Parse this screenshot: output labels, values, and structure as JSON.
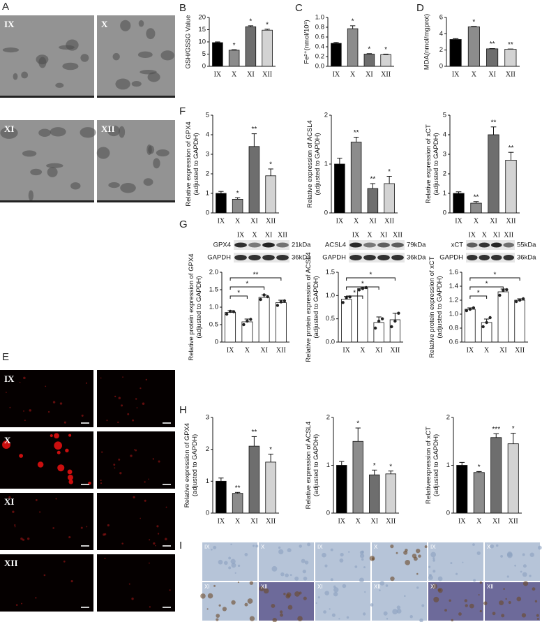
{
  "panel_labels": [
    "A",
    "B",
    "C",
    "D",
    "E",
    "F",
    "G",
    "H",
    "I"
  ],
  "panel_a_labels": [
    "IX",
    "X",
    "XI",
    "XII"
  ],
  "panel_e_labels": [
    "IX",
    "X",
    "XI",
    "XII"
  ],
  "panel_i_labels": [
    "IX",
    "X",
    "IX",
    "X",
    "IX",
    "X",
    "XI",
    "XII",
    "XI",
    "XII",
    "XI",
    "XII"
  ],
  "blots": [
    {
      "protein": "GPX4",
      "protein_kda": "21kDa",
      "control": "GAPDH",
      "control_kda": "36kDa",
      "lanes": [
        "IX",
        "X",
        "XI",
        "XII"
      ]
    },
    {
      "protein": "ACSL4",
      "protein_kda": "79kDa",
      "control": "GAPDH",
      "control_kda": "36kDa",
      "lanes": [
        "IX",
        "X",
        "XI",
        "XII"
      ]
    },
    {
      "protein": "xCT",
      "protein_kda": "55kDa",
      "control": "GAPDH",
      "control_kda": "36kDa",
      "lanes": [
        "IX",
        "X",
        "XI",
        "XII"
      ]
    }
  ],
  "chart_data": [
    {
      "type": "bar",
      "ylabel": [
        "GSH/GSSG Value"
      ],
      "categories": [
        "IX",
        "X",
        "XI",
        "XII"
      ],
      "values": [
        9.7,
        6.6,
        16.2,
        14.8
      ],
      "errors": [
        0.3,
        0.2,
        0.4,
        0.4
      ],
      "annotations": [
        null,
        "*",
        "*",
        "*"
      ],
      "colors": [
        "#000000",
        "#8c8c8c",
        "#6e6e6e",
        "#d3d3d3"
      ],
      "ylim": [
        0,
        20
      ],
      "yticks": [
        0,
        5,
        10,
        15,
        20
      ]
    },
    {
      "type": "bar",
      "ylabel": [
        "Fe²⁺(nmol/10⁶)"
      ],
      "categories": [
        "IX",
        "X",
        "XI",
        "XII"
      ],
      "values": [
        0.47,
        0.77,
        0.25,
        0.24
      ],
      "errors": [
        0.02,
        0.06,
        0.01,
        0.01
      ],
      "annotations": [
        null,
        "*",
        "*",
        "*"
      ],
      "colors": [
        "#000000",
        "#8c8c8c",
        "#6e6e6e",
        "#d3d3d3"
      ],
      "ylim": [
        0,
        1
      ],
      "yticks": [
        {
          "value": 0,
          "label": "0.0"
        },
        0.2,
        0.4,
        0.6,
        0.8,
        {
          "value": 1,
          "label": "1.0"
        }
      ]
    },
    {
      "type": "bar",
      "ylabel": [
        "MDA(nmol/mgprot)"
      ],
      "categories": [
        "IX",
        "X",
        "XI",
        "XII"
      ],
      "values": [
        3.3,
        4.85,
        2.15,
        2.1
      ],
      "errors": [
        0.1,
        0.05,
        0.03,
        0.03
      ],
      "annotations": [
        null,
        "*",
        "**",
        "**"
      ],
      "colors": [
        "#000000",
        "#8c8c8c",
        "#6e6e6e",
        "#d3d3d3"
      ],
      "ylim": [
        0,
        6
      ],
      "yticks": [
        0,
        2,
        4,
        6
      ]
    },
    {
      "type": "bar",
      "ylabel": [
        "Relative expression of GPX4",
        "(adjusted to GAPDH)"
      ],
      "categories": [
        "IX",
        "X",
        "XI",
        "XII"
      ],
      "values": [
        1.0,
        0.7,
        3.4,
        1.9
      ],
      "errors": [
        0.1,
        0.08,
        0.65,
        0.35
      ],
      "annotations": [
        null,
        "*",
        "**",
        "*"
      ],
      "colors": [
        "#000000",
        "#8c8c8c",
        "#6e6e6e",
        "#d3d3d3"
      ],
      "ylim": [
        0,
        5
      ],
      "yticks": [
        0,
        1,
        2,
        3,
        4,
        5
      ]
    },
    {
      "type": "bar",
      "ylabel": [
        "Relative expression of ACSL4",
        "(adjusted to GAPDH)"
      ],
      "categories": [
        "IX",
        "X",
        "XI",
        "XII"
      ],
      "values": [
        1.0,
        1.45,
        0.5,
        0.6
      ],
      "errors": [
        0.12,
        0.1,
        0.1,
        0.15
      ],
      "annotations": [
        null,
        "**",
        "**",
        "*"
      ],
      "colors": [
        "#000000",
        "#8c8c8c",
        "#6e6e6e",
        "#d3d3d3"
      ],
      "ylim": [
        0,
        2
      ],
      "yticks": [
        0,
        1,
        2
      ]
    },
    {
      "type": "bar",
      "ylabel": [
        "Relative expression of xCT",
        "(adjusted to GAPDH)"
      ],
      "categories": [
        "IX",
        "X",
        "XI",
        "XII"
      ],
      "values": [
        1.0,
        0.5,
        4.0,
        2.7
      ],
      "errors": [
        0.08,
        0.08,
        0.4,
        0.4
      ],
      "annotations": [
        null,
        "**",
        "**",
        "**"
      ],
      "colors": [
        "#000000",
        "#8c8c8c",
        "#6e6e6e",
        "#d3d3d3"
      ],
      "ylim": [
        0,
        5
      ],
      "yticks": [
        0,
        1,
        2,
        3,
        4,
        5
      ]
    },
    {
      "type": "bar",
      "ylabel": [
        "Relative protein expression of GPX4",
        "(adjusted to GAPDH)"
      ],
      "categories": [
        "IX",
        "X",
        "XI",
        "XII"
      ],
      "values": [
        0.85,
        0.58,
        1.28,
        1.13
      ],
      "errors": [
        0.05,
        0.08,
        0.07,
        0.07
      ],
      "points": [
        [
          0.8,
          0.88,
          0.87
        ],
        [
          0.5,
          0.6,
          0.65
        ],
        [
          1.22,
          1.35,
          1.3
        ],
        [
          1.05,
          1.15,
          1.18
        ]
      ],
      "brackets": [
        "*",
        "*",
        "**"
      ],
      "colors": [
        "#ffffff",
        "#ffffff",
        "#ffffff",
        "#ffffff"
      ],
      "ylim": [
        0,
        2
      ],
      "yticks": [
        0,
        0.5,
        {
          "value": 1,
          "label": "1.0"
        },
        1.5,
        {
          "value": 2,
          "label": "2.0"
        }
      ]
    },
    {
      "type": "bar",
      "ylabel": [
        "Relative protein expression of ACSL4",
        "(adjusted to GAPDH)"
      ],
      "categories": [
        "IX",
        "X",
        "XI",
        "XII"
      ],
      "values": [
        0.92,
        1.15,
        0.42,
        0.48
      ],
      "errors": [
        0.06,
        0.03,
        0.12,
        0.14
      ],
      "points": [
        [
          0.85,
          0.95,
          0.97
        ],
        [
          1.12,
          1.15,
          1.17
        ],
        [
          0.3,
          0.45,
          0.5
        ],
        [
          0.33,
          0.45,
          0.62
        ]
      ],
      "brackets": [
        "*",
        "*",
        "*"
      ],
      "colors": [
        "#ffffff",
        "#ffffff",
        "#ffffff",
        "#ffffff"
      ],
      "ylim": [
        0,
        1.5
      ],
      "yticks": [
        {
          "value": 0,
          "label": "0.0"
        },
        0.5,
        {
          "value": 1,
          "label": "1.0"
        },
        1.5
      ]
    },
    {
      "type": "bar",
      "ylabel": [
        "Relative protein expression of xCT",
        "(adjusted to GAPDH)"
      ],
      "categories": [
        "IX",
        "X",
        "XI",
        "XII"
      ],
      "values": [
        1.07,
        0.88,
        1.32,
        1.2
      ],
      "errors": [
        0.02,
        0.05,
        0.04,
        0.02
      ],
      "points": [
        [
          1.05,
          1.07,
          1.09
        ],
        [
          0.82,
          0.88,
          0.95
        ],
        [
          1.27,
          1.34,
          1.35
        ],
        [
          1.18,
          1.2,
          1.22
        ]
      ],
      "brackets": [
        "*",
        "*",
        "*"
      ],
      "colors": [
        "#ffffff",
        "#ffffff",
        "#ffffff",
        "#ffffff"
      ],
      "ylim": [
        0.6,
        1.6
      ],
      "yticks": [
        0.6,
        0.8,
        {
          "value": 1,
          "label": "1.0"
        },
        1.2,
        1.4,
        1.6
      ]
    },
    {
      "type": "bar",
      "ylabel": [
        "Relative expression of GPX4",
        "(adjusted to GAPDH)"
      ],
      "categories": [
        "IX",
        "X",
        "XI",
        "XII"
      ],
      "values": [
        1.0,
        0.62,
        2.1,
        1.6
      ],
      "errors": [
        0.1,
        0.03,
        0.3,
        0.25
      ],
      "annotations": [
        null,
        "**",
        "**",
        "*"
      ],
      "colors": [
        "#000000",
        "#8c8c8c",
        "#6e6e6e",
        "#d3d3d3"
      ],
      "ylim": [
        0,
        3
      ],
      "yticks": [
        0,
        1,
        2,
        3
      ]
    },
    {
      "type": "bar",
      "ylabel": [
        "Relative expression of ACSL4",
        "(adjusted to GAPDH)"
      ],
      "categories": [
        "IX",
        "X",
        "XI",
        "XII"
      ],
      "values": [
        1.0,
        1.5,
        0.8,
        0.82
      ],
      "errors": [
        0.08,
        0.28,
        0.1,
        0.06
      ],
      "annotations": [
        null,
        "*",
        "*",
        "*"
      ],
      "colors": [
        "#000000",
        "#8c8c8c",
        "#6e6e6e",
        "#d3d3d3"
      ],
      "ylim": [
        0,
        2
      ],
      "yticks": [
        0,
        1,
        2
      ]
    },
    {
      "type": "bar",
      "ylabel": [
        "Relativeexpression of xCT",
        "(adjusted to GAPDH)"
      ],
      "categories": [
        "IX",
        "X",
        "XI",
        "XII"
      ],
      "values": [
        1.0,
        0.85,
        1.58,
        1.45
      ],
      "errors": [
        0.06,
        0.02,
        0.08,
        0.22
      ],
      "annotations": [
        null,
        "*",
        "***",
        "*"
      ],
      "colors": [
        "#000000",
        "#8c8c8c",
        "#6e6e6e",
        "#d3d3d3"
      ],
      "ylim": [
        0,
        2
      ],
      "yticks": [
        0,
        1,
        2
      ]
    }
  ]
}
